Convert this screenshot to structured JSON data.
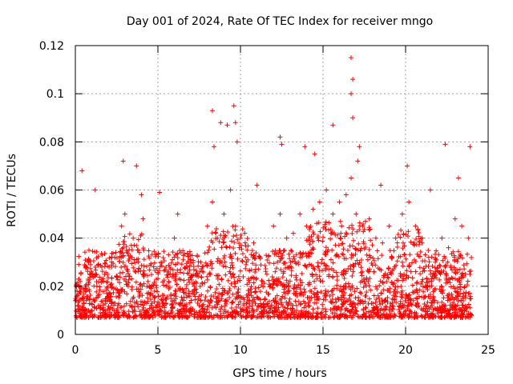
{
  "chart_data": {
    "type": "scatter",
    "title": "Day 001 of 2024, Rate Of TEC Index for receiver mngo",
    "xlabel": "GPS time / hours",
    "ylabel": "ROTI / TECUs",
    "xlim": [
      0,
      25
    ],
    "ylim": [
      0,
      0.12
    ],
    "xticks": [
      0,
      5,
      10,
      15,
      20,
      25
    ],
    "xtick_labels": [
      "0",
      "5",
      "10",
      "15",
      "20",
      "25"
    ],
    "yticks": [
      0,
      0.02,
      0.04,
      0.06,
      0.08,
      0.1,
      0.12
    ],
    "ytick_labels": [
      "0",
      "0.02",
      "0.04",
      "0.06",
      "0.08",
      "0.1",
      "0.12"
    ],
    "grid": true,
    "marker": "+",
    "color": "#ff0000",
    "series": [
      {
        "name": "ROTI",
        "x": [
          0.1,
          0.3,
          0.5,
          0.8,
          1.0,
          1.3,
          1.6,
          1.9,
          2.2,
          2.5,
          2.8,
          3.0,
          3.2,
          3.5,
          3.8,
          4.1,
          4.4,
          4.8,
          5.2,
          5.6,
          6.0,
          6.4,
          6.8,
          7.2,
          7.6,
          8.0,
          8.3,
          8.6,
          9.0,
          9.4,
          9.7,
          10.0,
          10.4,
          10.8,
          11.2,
          11.6,
          12.0,
          12.4,
          12.8,
          13.2,
          13.6,
          14.0,
          14.4,
          14.8,
          15.2,
          15.6,
          16.0,
          16.4,
          16.7,
          17.0,
          17.4,
          17.8,
          18.2,
          18.6,
          19.0,
          19.4,
          19.8,
          20.2,
          20.6,
          21.0,
          21.4,
          21.8,
          22.2,
          22.6,
          23.0,
          23.4,
          23.8,
          0.4,
          2.9,
          3.7,
          8.3,
          8.8,
          9.6,
          9.8,
          12.4,
          13.9,
          14.5,
          15.6,
          16.7,
          16.8,
          17.2,
          20.1,
          22.4,
          23.9,
          16.7,
          16.8,
          9.7,
          8.4,
          9.2,
          12.5,
          17.1,
          5.1,
          1.2,
          4.0,
          6.2,
          11.0,
          18.5,
          21.5,
          23.2,
          0.2,
          0.6,
          1.5,
          2.4,
          3.3,
          4.6,
          5.4,
          6.6,
          7.4,
          8.1,
          9.1,
          10.2,
          11.4,
          12.2,
          13.4,
          14.2,
          15.1,
          15.9,
          16.5,
          17.6,
          18.4,
          19.2,
          20.0,
          20.8,
          21.6,
          22.4,
          23.6
        ],
        "y": [
          0.018,
          0.022,
          0.015,
          0.03,
          0.025,
          0.02,
          0.028,
          0.017,
          0.032,
          0.024,
          0.045,
          0.05,
          0.02,
          0.04,
          0.035,
          0.048,
          0.022,
          0.018,
          0.03,
          0.026,
          0.04,
          0.034,
          0.028,
          0.02,
          0.03,
          0.045,
          0.055,
          0.04,
          0.05,
          0.06,
          0.045,
          0.04,
          0.035,
          0.038,
          0.032,
          0.025,
          0.045,
          0.05,
          0.04,
          0.042,
          0.05,
          0.045,
          0.052,
          0.055,
          0.06,
          0.05,
          0.055,
          0.058,
          0.065,
          0.05,
          0.045,
          0.048,
          0.04,
          0.038,
          0.045,
          0.04,
          0.05,
          0.055,
          0.045,
          0.038,
          0.032,
          0.03,
          0.04,
          0.036,
          0.048,
          0.045,
          0.04,
          0.068,
          0.072,
          0.07,
          0.093,
          0.088,
          0.095,
          0.08,
          0.082,
          0.078,
          0.075,
          0.087,
          0.115,
          0.106,
          0.078,
          0.07,
          0.079,
          0.078,
          0.1,
          0.09,
          0.088,
          0.078,
          0.087,
          0.079,
          0.072,
          0.059,
          0.06,
          0.058,
          0.05,
          0.062,
          0.062,
          0.06,
          0.065,
          0.012,
          0.01,
          0.011,
          0.013,
          0.012,
          0.011,
          0.012,
          0.01,
          0.013,
          0.012,
          0.014,
          0.012,
          0.011,
          0.013,
          0.012,
          0.014,
          0.016,
          0.015,
          0.014,
          0.016,
          0.015,
          0.013,
          0.014,
          0.012,
          0.013,
          0.012,
          0.011
        ]
      }
    ]
  }
}
